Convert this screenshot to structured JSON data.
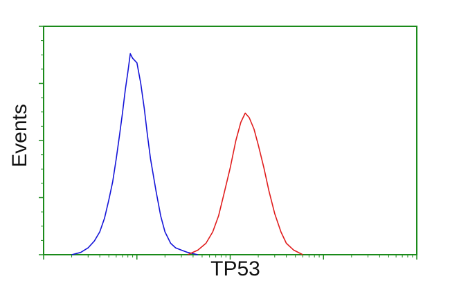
{
  "chart_data": {
    "type": "line",
    "xlabel": "TP53",
    "ylabel": "Events",
    "xlog": true,
    "xlim": [
      1,
      10000
    ],
    "xticks": [
      1,
      10,
      100,
      1000,
      10000
    ],
    "ylim": [
      0,
      100
    ],
    "yticks": [
      0,
      25,
      50,
      75,
      100
    ],
    "axis_color": "#1a8a1a",
    "series": [
      {
        "color": "#1414d8",
        "x": [
          2,
          2.5,
          3,
          3.5,
          4,
          4.5,
          5,
          5.5,
          6,
          6.5,
          7,
          7.5,
          8,
          8.5,
          9,
          10,
          11,
          12,
          13,
          14,
          16,
          18,
          20,
          23,
          26,
          30,
          35,
          45
        ],
        "values": [
          0,
          1,
          3,
          6,
          10,
          16,
          24,
          32,
          42,
          52,
          62,
          72,
          80,
          88,
          86,
          84,
          75,
          64,
          52,
          42,
          28,
          17,
          10,
          5,
          3,
          2,
          1,
          0
        ]
      },
      {
        "color": "#e01c1c",
        "x": [
          35,
          45,
          55,
          65,
          75,
          85,
          100,
          115,
          130,
          145,
          160,
          180,
          200,
          230,
          260,
          300,
          350,
          400,
          480,
          600
        ],
        "values": [
          0,
          2,
          5,
          10,
          17,
          26,
          38,
          50,
          58,
          62,
          60,
          55,
          48,
          38,
          28,
          18,
          10,
          5,
          2,
          0
        ]
      }
    ]
  }
}
